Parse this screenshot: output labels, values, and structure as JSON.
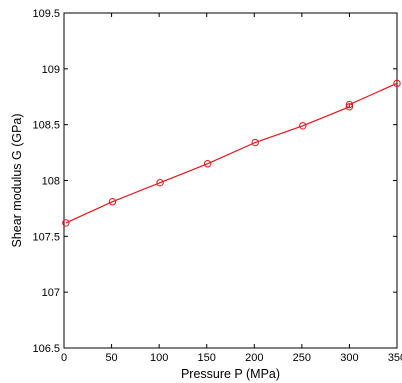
{
  "chart_data": {
    "type": "line",
    "xlabel": "Pressure P (MPa)",
    "ylabel": "Shear modulus G (GPa)",
    "xlim": [
      0,
      350
    ],
    "ylim": [
      106.5,
      109.5
    ],
    "xticks": [
      0,
      50,
      100,
      150,
      200,
      250,
      300,
      350
    ],
    "yticks": [
      106.5,
      107,
      107.5,
      108,
      108.5,
      109,
      109.5
    ],
    "xtick_labels": [
      "0",
      "50",
      "100",
      "150",
      "200",
      "250",
      "300",
      "350"
    ],
    "ytick_labels": [
      "106.5",
      "107",
      "107.5",
      "108",
      "108.5",
      "109",
      "109.5"
    ],
    "grid": false,
    "series": [
      {
        "color": "#e8141c",
        "marker": "open-circle",
        "x": [
          2,
          51,
          101,
          151,
          201,
          251,
          300,
          300,
          350
        ],
        "y": [
          107.62,
          107.81,
          107.98,
          108.15,
          108.34,
          108.49,
          108.66,
          108.68,
          108.87
        ]
      }
    ]
  }
}
